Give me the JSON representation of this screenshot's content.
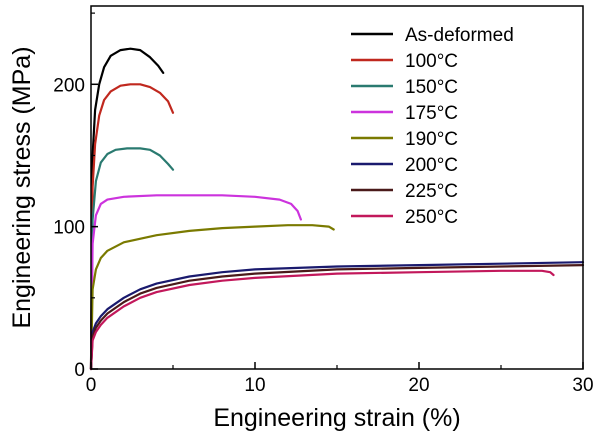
{
  "chart_data": {
    "type": "line",
    "title": "",
    "xlabel": "Engineering strain (%)",
    "ylabel": "Engineering stress (MPa)",
    "xlim": [
      0,
      30
    ],
    "ylim": [
      0,
      255
    ],
    "xticks": [
      0,
      10,
      20,
      30
    ],
    "yticks": [
      0,
      100,
      200
    ],
    "grid": false,
    "legend_position": "top-right",
    "series": [
      {
        "name": "As-deformed",
        "color": "#000000",
        "x": [
          0,
          0.1,
          0.25,
          0.5,
          0.8,
          1.2,
          1.8,
          2.4,
          3.0,
          3.6,
          4.1,
          4.4
        ],
        "y": [
          0,
          150,
          182,
          200,
          212,
          220,
          224,
          225,
          224,
          219,
          213,
          208
        ]
      },
      {
        "name": "100°C",
        "color": "#c0281e",
        "x": [
          0,
          0.1,
          0.25,
          0.5,
          0.8,
          1.2,
          1.8,
          2.4,
          3.0,
          3.6,
          4.2,
          4.7,
          5.0
        ],
        "y": [
          0,
          128,
          158,
          178,
          189,
          195,
          199,
          200,
          200,
          198,
          194,
          188,
          180
        ]
      },
      {
        "name": "150°C",
        "color": "#2a7a70",
        "x": [
          0,
          0.1,
          0.3,
          0.6,
          1.0,
          1.5,
          2.2,
          3.0,
          3.6,
          4.2,
          4.7,
          5.0
        ],
        "y": [
          0,
          105,
          132,
          145,
          151,
          154,
          155,
          155,
          154,
          150,
          144,
          140
        ]
      },
      {
        "name": "175°C",
        "color": "#cc33dd",
        "x": [
          0,
          0.1,
          0.3,
          0.6,
          1.0,
          2.0,
          4.0,
          6.0,
          8.0,
          10.0,
          11.5,
          12.2,
          12.6,
          12.8
        ],
        "y": [
          0,
          88,
          108,
          116,
          119,
          121,
          122,
          122,
          122,
          121,
          119,
          116,
          111,
          105
        ]
      },
      {
        "name": "190°C",
        "color": "#7a7a00",
        "x": [
          0,
          0.1,
          0.3,
          0.6,
          1.0,
          2.0,
          4.0,
          6.0,
          8.0,
          10.0,
          12.0,
          13.5,
          14.5,
          14.8
        ],
        "y": [
          0,
          56,
          70,
          78,
          83,
          89,
          94,
          97,
          99,
          100,
          101,
          101,
          100,
          98
        ]
      },
      {
        "name": "200°C",
        "color": "#1a1a6e",
        "x": [
          0,
          0.1,
          0.3,
          0.6,
          1.0,
          2.0,
          3.0,
          4.0,
          6.0,
          8.0,
          10.0,
          15.0,
          20.0,
          25.0,
          30.0
        ],
        "y": [
          0,
          26,
          32,
          37,
          42,
          50,
          56,
          60,
          65,
          68,
          70,
          72,
          73,
          74,
          75
        ]
      },
      {
        "name": "225°C",
        "color": "#4a1a1a",
        "x": [
          0,
          0.1,
          0.3,
          0.6,
          1.0,
          2.0,
          3.0,
          4.0,
          6.0,
          8.0,
          10.0,
          15.0,
          20.0,
          25.0,
          30.0
        ],
        "y": [
          0,
          23,
          29,
          34,
          39,
          47,
          53,
          57,
          62,
          65,
          67,
          70,
          71,
          72,
          73
        ]
      },
      {
        "name": "250°C",
        "color": "#c2185b",
        "x": [
          0,
          0.1,
          0.3,
          0.6,
          1.0,
          2.0,
          3.0,
          4.0,
          6.0,
          8.0,
          10.0,
          15.0,
          20.0,
          25.0,
          27.5,
          28.0,
          28.2
        ],
        "y": [
          0,
          20,
          26,
          31,
          36,
          44,
          50,
          54,
          59,
          62,
          64,
          67,
          68,
          69,
          69,
          68,
          66
        ]
      }
    ]
  }
}
